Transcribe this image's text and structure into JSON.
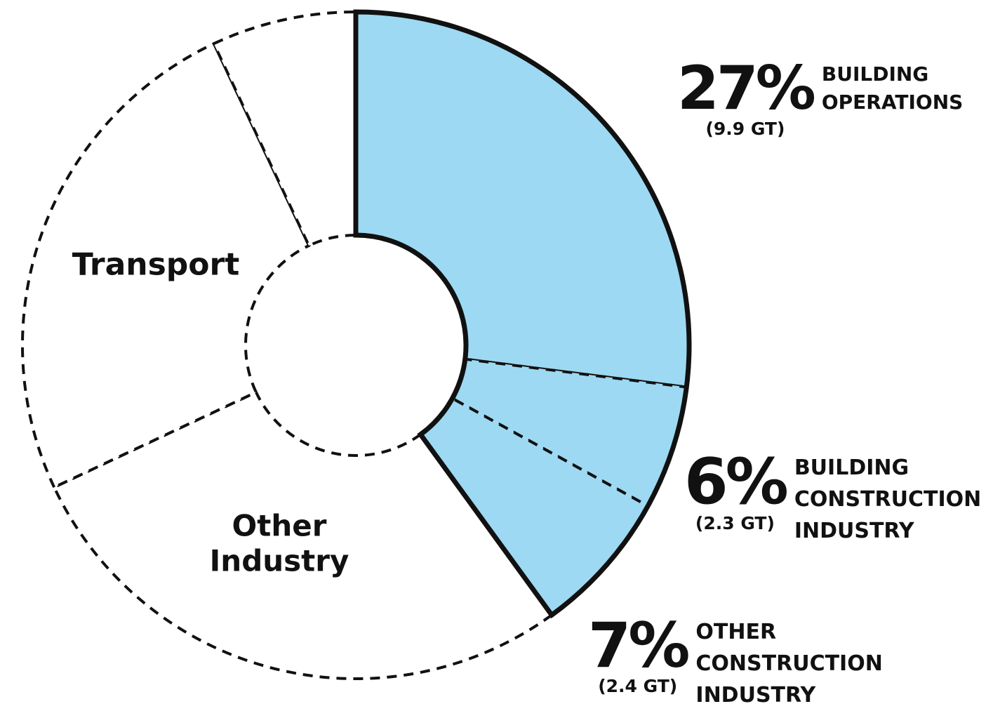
{
  "chart_data": {
    "type": "donut",
    "categories": [
      "BUILDING OPERATIONS",
      "BUILDING CONSTRUCTION INDUSTRY",
      "OTHER CONSTRUCTION INDUSTRY",
      "Other Industry",
      "Transport",
      null
    ],
    "values": [
      27,
      6,
      7,
      28,
      25,
      7
    ],
    "value_labels": [
      "27%",
      "6%",
      "7%",
      null,
      null,
      null
    ],
    "emissions_labels": [
      "(9.9 GT)",
      "(2.3 GT)",
      "(2.4 GT)",
      null,
      null,
      null
    ],
    "colors": [
      "#9dd9f2",
      "#9dd9f2",
      "#9dd9f2",
      "#ffffff",
      "#ffffff",
      "#ffffff"
    ],
    "highlighted": [
      true,
      true,
      true,
      false,
      false,
      false
    ]
  }
}
